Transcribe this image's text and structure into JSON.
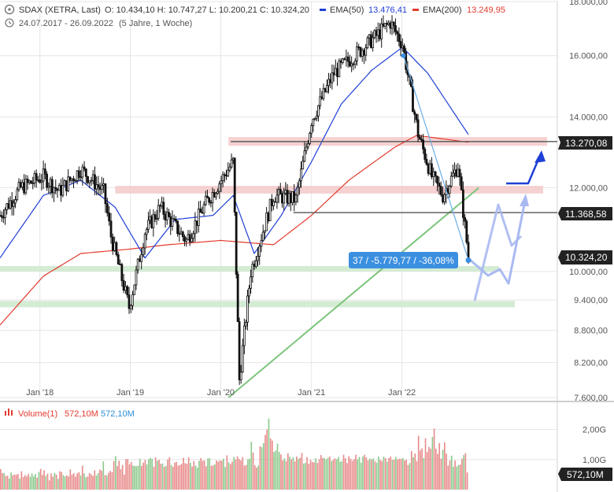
{
  "header": {
    "symbol": "SDAX (XETRA, Last)",
    "ohlc": "O: 10.434,10   H: 10.747,27   L: 10.200,21   C: 10.324,20",
    "ema50_label": "EMA(50)",
    "ema50_value": "13.476,41",
    "ema200_label": "EMA(200)",
    "ema200_value": "13.249,95",
    "range": "24.07.2017 - 26.09.2022",
    "period": "(5 Jahre, 1 Woche)"
  },
  "volume_header": {
    "label": "Volume(1)",
    "value1": "572,10M",
    "value2": "572,10M"
  },
  "colors": {
    "ema50": "#1f3fd6",
    "ema200": "#e23b2e",
    "candle": "#111111",
    "red_zone": "#f3c9c9",
    "green_zone": "#cde9cd",
    "trendline": "#7cc47c",
    "arrow_blue": "#1f3fd6",
    "arrow_light": "#a9b9f2",
    "badge": "#3b8fe0",
    "vol_up": "#8cc98c",
    "vol_down": "#e88a8a"
  },
  "badges": {
    "measure": "37 / -5.779,77 / -36,08%",
    "level_13270": "13.270,08",
    "level_11368": "11.368,58",
    "last_price": "10.324,20",
    "last_volume": "572,10M"
  },
  "chart_data": {
    "type": "candlestick",
    "title": "SDAX (XETRA, Last)",
    "x_range": [
      "2017-07-24",
      "2022-09-26"
    ],
    "x_ticks": [
      "Jan '18",
      "Jan '19",
      "Jan '20",
      "Jan '21",
      "Jan '22"
    ],
    "y_scale": "log",
    "ylim": [
      7600,
      18000
    ],
    "y_ticks": [
      "18.000,00",
      "16.000,00",
      "14.000,00",
      "12.000,00",
      "10.000,00",
      "9.400,00",
      "8.800,00",
      "8.200,00",
      "7.600,00"
    ],
    "y_tick_values": [
      18000,
      16000,
      14000,
      12000,
      10000,
      9400,
      8800,
      8200,
      7600
    ],
    "close_path": [
      {
        "date": "2017-07-24",
        "close": 11300
      },
      {
        "date": "2017-10-15",
        "close": 12000
      },
      {
        "date": "2018-01-15",
        "close": 12300
      },
      {
        "date": "2018-03-20",
        "close": 11900
      },
      {
        "date": "2018-06-15",
        "close": 12500
      },
      {
        "date": "2018-09-15",
        "close": 11900
      },
      {
        "date": "2018-10-15",
        "close": 10800
      },
      {
        "date": "2018-12-27",
        "close": 9250
      },
      {
        "date": "2019-03-01",
        "close": 10900
      },
      {
        "date": "2019-05-01",
        "close": 11500
      },
      {
        "date": "2019-08-15",
        "close": 10700
      },
      {
        "date": "2019-11-01",
        "close": 11600
      },
      {
        "date": "2020-02-20",
        "close": 12700
      },
      {
        "date": "2020-03-16",
        "close": 7900
      },
      {
        "date": "2020-05-01",
        "close": 10000
      },
      {
        "date": "2020-08-01",
        "close": 11800
      },
      {
        "date": "2020-10-30",
        "close": 11700
      },
      {
        "date": "2021-01-01",
        "close": 13900
      },
      {
        "date": "2021-04-01",
        "close": 15400
      },
      {
        "date": "2021-08-01",
        "close": 16300
      },
      {
        "date": "2021-11-15",
        "close": 17200
      },
      {
        "date": "2022-01-03",
        "close": 16400
      },
      {
        "date": "2022-03-07",
        "close": 13500
      },
      {
        "date": "2022-05-01",
        "close": 12300
      },
      {
        "date": "2022-06-15",
        "close": 11800
      },
      {
        "date": "2022-08-15",
        "close": 12600
      },
      {
        "date": "2022-09-26",
        "close": 10324.2
      }
    ],
    "ema50_path": [
      {
        "date": "2017-07-24",
        "value": 10300
      },
      {
        "date": "2018-01-15",
        "value": 11800
      },
      {
        "date": "2018-06-15",
        "value": 12200
      },
      {
        "date": "2018-11-01",
        "value": 11500
      },
      {
        "date": "2019-03-01",
        "value": 10300
      },
      {
        "date": "2019-07-01",
        "value": 11200
      },
      {
        "date": "2019-12-01",
        "value": 11300
      },
      {
        "date": "2020-02-20",
        "value": 11800
      },
      {
        "date": "2020-05-15",
        "value": 10400
      },
      {
        "date": "2020-09-01",
        "value": 11300
      },
      {
        "date": "2021-01-01",
        "value": 12700
      },
      {
        "date": "2021-05-01",
        "value": 14400
      },
      {
        "date": "2021-09-01",
        "value": 15500
      },
      {
        "date": "2022-01-03",
        "value": 16300
      },
      {
        "date": "2022-04-15",
        "value": 15400
      },
      {
        "date": "2022-09-26",
        "value": 13476.41
      }
    ],
    "ema200_path": [
      {
        "date": "2017-07-24",
        "value": 8900
      },
      {
        "date": "2018-01-15",
        "value": 9900
      },
      {
        "date": "2018-06-15",
        "value": 10400
      },
      {
        "date": "2019-01-01",
        "value": 10500
      },
      {
        "date": "2019-06-01",
        "value": 10600
      },
      {
        "date": "2020-01-01",
        "value": 10700
      },
      {
        "date": "2020-08-01",
        "value": 10600
      },
      {
        "date": "2021-01-01",
        "value": 11300
      },
      {
        "date": "2021-06-01",
        "value": 12200
      },
      {
        "date": "2021-12-01",
        "value": 13100
      },
      {
        "date": "2022-03-01",
        "value": 13450
      },
      {
        "date": "2022-09-26",
        "value": 13249.95
      }
    ],
    "series": [
      {
        "name": "EMA(50)",
        "last": 13476.41
      },
      {
        "name": "EMA(200)",
        "last": 13249.95
      }
    ],
    "horizontal_levels": [
      13270.08,
      11368.58
    ],
    "zones": [
      {
        "color": "red",
        "from": 13150,
        "to": 13400,
        "start": "2020-02-01"
      },
      {
        "color": "red",
        "from": 11850,
        "to": 12050,
        "start": "2018-11-01"
      },
      {
        "color": "green",
        "from": 10000,
        "to": 10120,
        "start": "2017-07-24"
      },
      {
        "color": "green",
        "from": 9250,
        "to": 9380,
        "start": "2017-07-24"
      }
    ],
    "trendline": [
      {
        "date": "2020-02-01",
        "value": 7600
      },
      {
        "date": "2022-11-07",
        "value": 12000
      }
    ],
    "measure": {
      "from_date": "2022-01-07",
      "from": 16000,
      "to_date": "2022-09-26",
      "to": 10250,
      "bars": 37,
      "change": -5779.77,
      "percent": -36.08
    },
    "volume": {
      "label": "Volume(1)",
      "last": "572,10M",
      "y_ticks": [
        "2,00G",
        "1,00G"
      ],
      "y_tick_values": [
        2.0,
        1.0
      ],
      "unit": "G",
      "values_g": [
        0.68,
        0.55,
        0.55,
        0.46,
        0.46,
        0.37,
        0.57,
        0.48,
        0.5,
        0.5,
        0.52,
        0.37,
        0.61,
        0.42,
        0.48,
        0.44,
        0.52,
        0.43,
        0.54,
        0.44,
        0.52,
        0.4,
        0.59,
        0.69,
        0.49,
        0.64,
        0.46,
        0.53,
        0.31,
        0.54,
        0.43,
        0.56,
        0.5,
        0.36,
        0.61,
        0.59,
        0.48,
        0.44,
        0.47,
        0.44,
        0.67,
        0.5,
        0.55,
        0.43,
        0.54,
        0.58,
        0.47,
        0.8,
        0.54,
        0.41,
        0.44,
        0.55,
        0.51,
        0.45,
        0.64,
        0.47,
        0.55,
        0.67,
        0.63,
        0.94,
        0.49,
        0.47,
        0.56,
        0.62,
        0.58,
        0.95,
        1.11,
        0.78,
        0.96,
        0.68,
        0.82,
        0.5,
        1.01,
        1.02,
        0.84,
        0.92,
        0.8,
        0.79,
        0.78,
        0.8,
        1.03,
        0.79,
        0.9,
        0.99,
        0.84,
        1.01,
        1.06,
        1.02,
        0.76,
        1.07,
        0.96,
        0.99,
        0.86,
        0.87,
        0.76,
        0.79,
        1.0,
        1.08,
        0.82,
        0.76,
        0.9,
        0.92,
        0.8,
        0.82,
        0.86,
        1.06,
        0.88,
        0.86,
        1.07,
        0.89,
        0.77,
        0.95,
        0.8,
        0.73,
        0.96,
        1.05,
        0.96,
        0.97,
        0.78,
        1.03,
        1.05,
        0.79,
        0.81,
        0.84,
        0.97,
        0.93,
        0.97,
        0.96,
        1.03,
        0.75,
        1.14,
        0.91,
        0.85,
        0.93,
        1.09,
        1.0,
        1.11,
        1.02,
        0.97,
        1.08,
        0.8,
        0.82,
        1.01,
        1.03,
        1.59,
        1.23,
        0.81,
        0.73,
        0.8,
        1.44,
        1.41,
        1.55,
        1.82,
        2.0,
        2.36,
        1.7,
        1.63,
        1.25,
        1.3,
        1.53,
        1.25,
        1.17,
        0.97,
        1.04,
        0.95,
        1.21,
        1.1,
        1.01,
        1.08,
        0.94,
        1.1,
        1.02,
        1.06,
        1.22,
        0.87,
        0.89,
        1.08,
        0.86,
        0.99,
        0.92,
        0.91,
        1.04,
        0.89,
        1.01,
        1.15,
        1.05,
        1.05,
        1.01,
        1.06,
        1.1,
        0.95,
        0.99,
        1.04,
        1.01,
        1.09,
        0.93,
        0.95,
        1.16,
        1.04,
        0.88,
        1.11,
        1.03,
        0.96,
        1.01,
        1.16,
        1.01,
        1.09,
        0.9,
        1.1,
        1.16,
        1.07,
        0.97,
        1.03,
        1.0,
        1.04,
        0.95,
        0.9,
        1.1,
        0.99,
        0.95,
        1.1,
        1.05,
        0.93,
        1.05,
        1.1,
        0.99,
        1.0,
        1.09,
        1.0,
        1.03,
        1.02,
        1.05,
        0.97,
        0.99,
        0.82,
        0.89,
        1.28,
        1.08,
        1.2,
        0.95,
        1.79,
        1.3,
        1.37,
        1.05,
        1.71,
        1.25,
        1.42,
        1.36,
        1.75,
        2.03,
        1.36,
        1.19,
        1.55,
        1.03,
        1.33,
        1.57,
        1.2,
        0.8,
        0.97,
        1.13,
        0.76,
        0.97,
        0.77,
        0.82,
        0.83,
        1.03,
        1.15,
        1.21,
        0.57
      ]
    }
  }
}
